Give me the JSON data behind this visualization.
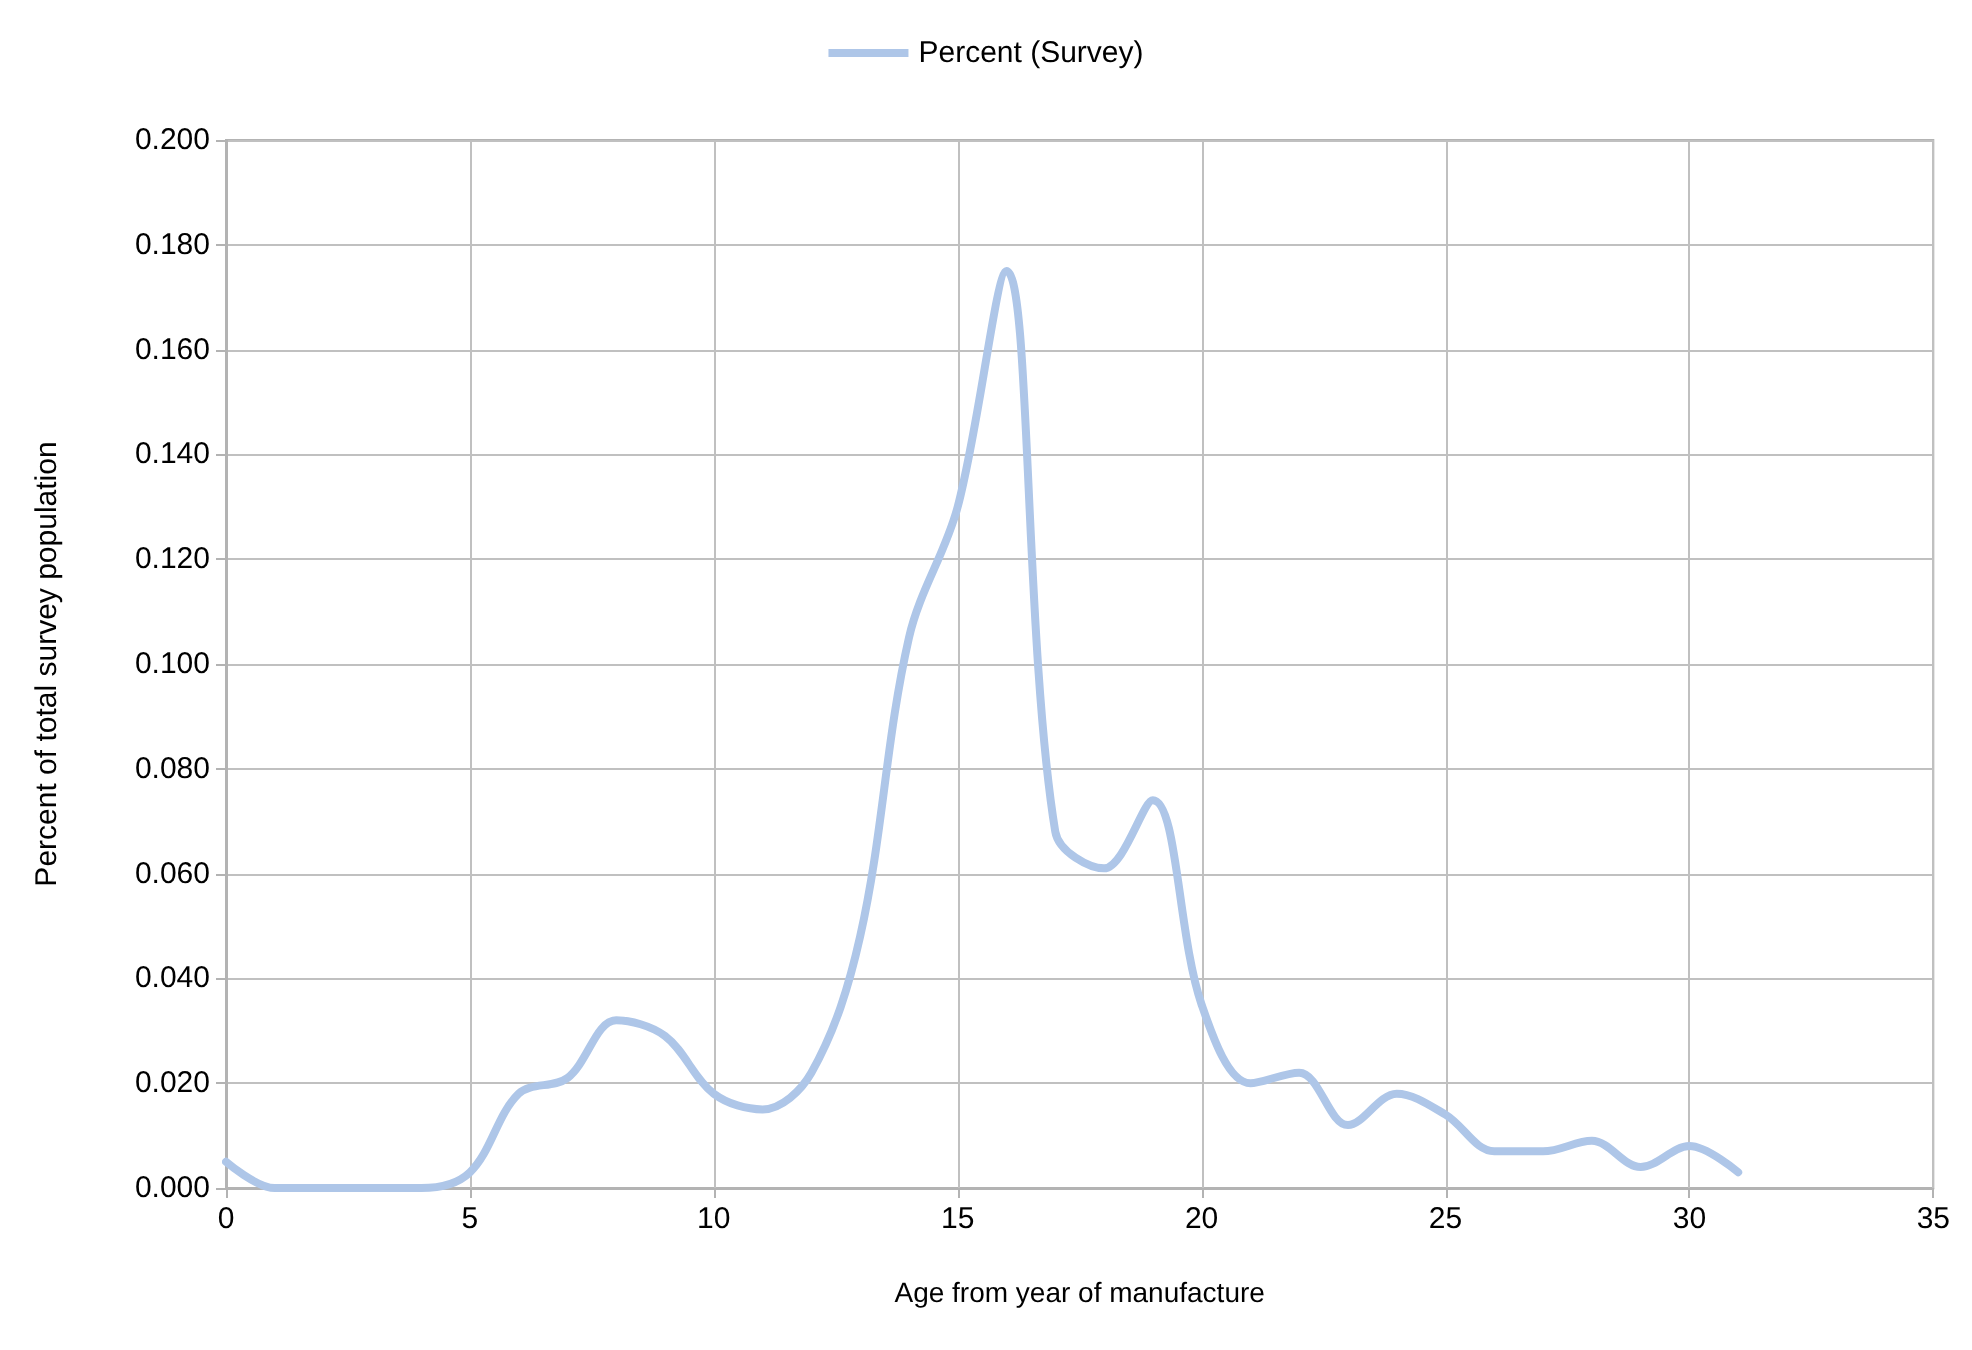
{
  "chart_data": {
    "type": "line",
    "xlabel": "Age from year of manufacture",
    "ylabel": "Percent of total survey population",
    "x": [
      0,
      1,
      2,
      3,
      4,
      5,
      6,
      7,
      8,
      9,
      10,
      11,
      12,
      13,
      14,
      15,
      16,
      17,
      18,
      19,
      20,
      21,
      22,
      23,
      24,
      25,
      26,
      27,
      28,
      29,
      30,
      31
    ],
    "series": [
      {
        "name": "Percent (Survey)",
        "color": "#aec6e8",
        "values": [
          0.005,
          0,
          0,
          0,
          0,
          0.003,
          0.018,
          0.021,
          0.032,
          0.029,
          0.018,
          0.015,
          0.022,
          0.048,
          0.105,
          0.13,
          0.175,
          0.068,
          0.061,
          0.074,
          0.035,
          0.02,
          0.022,
          0.012,
          0.018,
          0.014,
          0.007,
          0.007,
          0.009,
          0.004,
          0.008,
          0.003
        ]
      }
    ],
    "xlim": [
      0,
      35
    ],
    "xticks": [
      0,
      5,
      10,
      15,
      20,
      25,
      30,
      35
    ],
    "ylim": [
      0,
      0.2
    ],
    "yticks": [
      {
        "value": 0,
        "label": "0.000"
      },
      {
        "value": 0.02,
        "label": "0.020"
      },
      {
        "value": 0.04,
        "label": "0.040"
      },
      {
        "value": 0.06,
        "label": "0.060"
      },
      {
        "value": 0.08,
        "label": "0.080"
      },
      {
        "value": 0.1,
        "label": "0.100"
      },
      {
        "value": 0.12,
        "label": "0.120"
      },
      {
        "value": 0.14,
        "label": "0.140"
      },
      {
        "value": 0.16,
        "label": "0.160"
      },
      {
        "value": 0.18,
        "label": "0.180"
      },
      {
        "value": 0.2,
        "label": "0.200"
      }
    ],
    "grid": true,
    "legend": "top",
    "marker": "none",
    "line_style": "solid"
  }
}
